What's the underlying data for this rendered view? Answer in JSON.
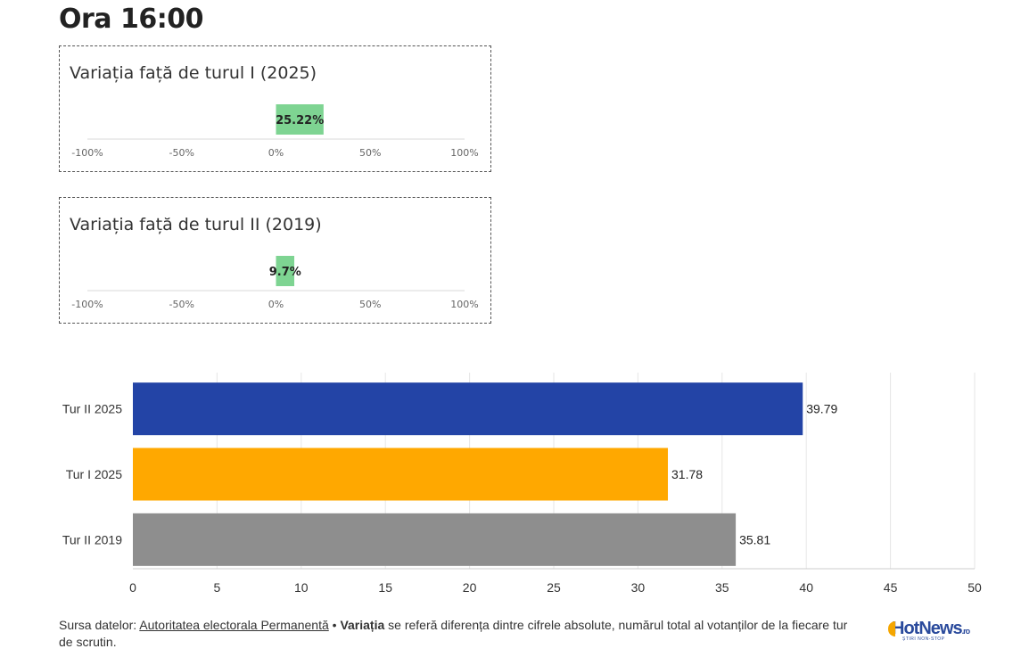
{
  "page_title": "Ora 16:00",
  "chart_data": [
    {
      "type": "bar",
      "orientation": "horizontal",
      "title": "Variația față de turul I (2025)",
      "values": [
        25.22
      ],
      "value_label": "25.22%",
      "xlim": [
        -100,
        100
      ],
      "ticks": [
        "-100%",
        "-50%",
        "0%",
        "50%",
        "100%"
      ],
      "color": "#7ed492"
    },
    {
      "type": "bar",
      "orientation": "horizontal",
      "title": "Variația față de turul II (2019)",
      "values": [
        9.7
      ],
      "value_label": "9.7%",
      "xlim": [
        -100,
        100
      ],
      "ticks": [
        "-100%",
        "-50%",
        "0%",
        "50%",
        "100%"
      ],
      "color": "#7ed492"
    },
    {
      "type": "bar",
      "orientation": "horizontal",
      "categories": [
        "Tur II 2025",
        "Tur I 2025",
        "Tur II 2019"
      ],
      "values": [
        39.79,
        31.78,
        35.81
      ],
      "colors": [
        "#2344a6",
        "#ffa800",
        "#8e8e8e"
      ],
      "xlim": [
        0,
        50
      ],
      "xticks": [
        0,
        5,
        10,
        15,
        20,
        25,
        30,
        35,
        40,
        45,
        50
      ],
      "grid": true
    }
  ],
  "footnote": {
    "source_prefix": "Sursa datelor: ",
    "source_link": "Autoritatea electorala Permanentă",
    "separator": " • ",
    "bold_term": "Variația",
    "text": " se referă diferența dintre cifrele absolute, numărul total al votanților de la fiecare tur de scrutin."
  },
  "logo": {
    "main": "HotNews",
    "suffix": ".ro",
    "tagline": "ȘTIRI NON-STOP"
  }
}
